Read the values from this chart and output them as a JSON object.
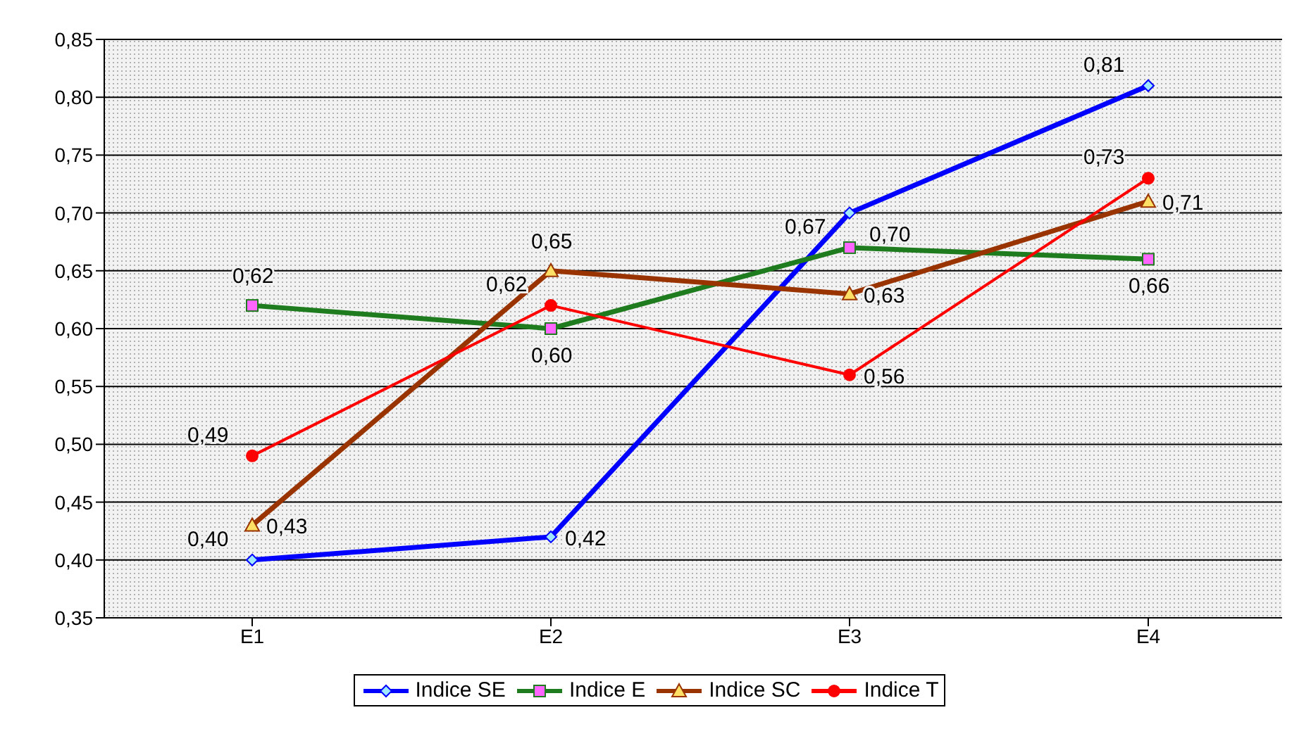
{
  "chart_data": {
    "type": "line",
    "categories": [
      "E1",
      "E2",
      "E3",
      "E4"
    ],
    "series": [
      {
        "name": "Indice SE",
        "color": "#0000ff",
        "marker": "diamond",
        "values": [
          0.4,
          0.42,
          0.7,
          0.81
        ],
        "value_labels": [
          "0,40",
          "0,42",
          "0,70",
          "0,81"
        ]
      },
      {
        "name": "Indice E",
        "color": "#1e7b1e",
        "marker": "square",
        "values": [
          0.62,
          0.6,
          0.67,
          0.66
        ],
        "value_labels": [
          "0,62",
          "0,60",
          "0,67",
          "0,66"
        ]
      },
      {
        "name": "Indice SC",
        "color": "#993300",
        "marker": "triangle",
        "values": [
          0.43,
          0.65,
          0.63,
          0.71
        ],
        "value_labels": [
          "0,43",
          "0,65",
          "0,63",
          "0,71"
        ]
      },
      {
        "name": "Indice T",
        "color": "#ff0000",
        "marker": "circle",
        "values": [
          0.49,
          0.62,
          0.56,
          0.73
        ],
        "value_labels": [
          "0,49",
          "0,62",
          "0,56",
          "0,73"
        ]
      }
    ],
    "ylim": [
      0.35,
      0.85
    ],
    "yticks": [
      {
        "value": 0.35,
        "label": "0,35"
      },
      {
        "value": 0.4,
        "label": "0,40"
      },
      {
        "value": 0.45,
        "label": "0,45"
      },
      {
        "value": 0.5,
        "label": "0,50"
      },
      {
        "value": 0.55,
        "label": "0,55"
      },
      {
        "value": 0.6,
        "label": "0,60"
      },
      {
        "value": 0.65,
        "label": "0,65"
      },
      {
        "value": 0.7,
        "label": "0,70"
      },
      {
        "value": 0.75,
        "label": "0,75"
      },
      {
        "value": 0.8,
        "label": "0,80"
      },
      {
        "value": 0.85,
        "label": "0,85"
      }
    ],
    "grid": "y",
    "legend": "bottom"
  }
}
